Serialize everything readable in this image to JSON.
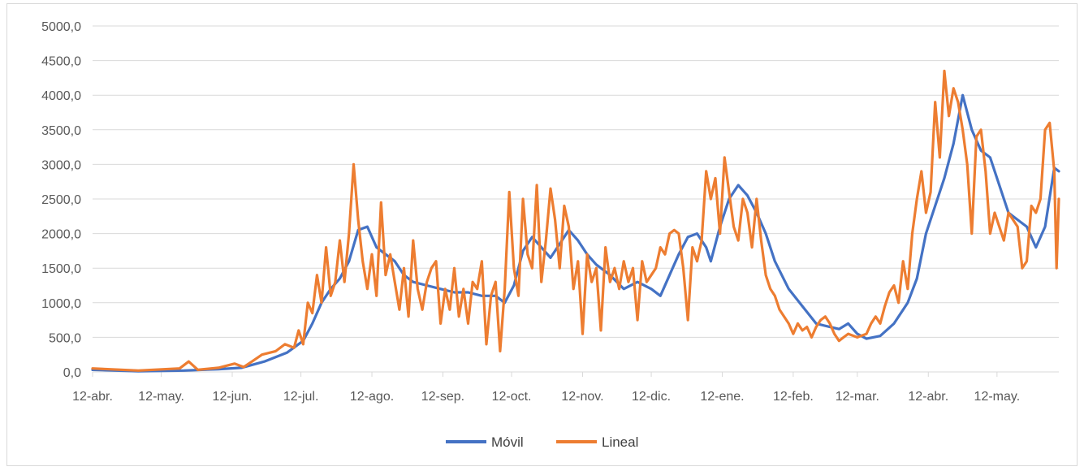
{
  "colors": {
    "movil": "#4472c4",
    "lineal": "#ed7d31",
    "grid": "#d9d9d9",
    "text": "#595959"
  },
  "chart_data": {
    "type": "line",
    "title": "",
    "xlabel": "",
    "ylabel": "",
    "ylim": [
      0,
      5000
    ],
    "yticks": [
      "0,0",
      "500,0",
      "1000,0",
      "1500,0",
      "2000,0",
      "2500,0",
      "3000,0",
      "3500,0",
      "4000,0",
      "4500,0",
      "5000,0"
    ],
    "xticks": [
      {
        "label": "12-abr.",
        "day": 0
      },
      {
        "label": "12-may.",
        "day": 30
      },
      {
        "label": "12-jun.",
        "day": 61
      },
      {
        "label": "12-jul.",
        "day": 91
      },
      {
        "label": "12-ago.",
        "day": 122
      },
      {
        "label": "12-sep.",
        "day": 153
      },
      {
        "label": "12-oct.",
        "day": 183
      },
      {
        "label": "12-nov.",
        "day": 214
      },
      {
        "label": "12-dic.",
        "day": 244
      },
      {
        "label": "12-ene.",
        "day": 275
      },
      {
        "label": "12-feb.",
        "day": 306
      },
      {
        "label": "12-mar.",
        "day": 334
      },
      {
        "label": "12-abr.",
        "day": 365
      },
      {
        "label": "12-may.",
        "day": 395
      }
    ],
    "grid": true,
    "legend": "bottom",
    "series": [
      {
        "name": "Móvil",
        "color": "#4472c4",
        "points": [
          [
            0,
            30
          ],
          [
            20,
            10
          ],
          [
            40,
            20
          ],
          [
            55,
            40
          ],
          [
            65,
            60
          ],
          [
            75,
            150
          ],
          [
            85,
            280
          ],
          [
            92,
            450
          ],
          [
            96,
            700
          ],
          [
            100,
            1000
          ],
          [
            104,
            1200
          ],
          [
            108,
            1350
          ],
          [
            112,
            1600
          ],
          [
            116,
            2050
          ],
          [
            120,
            2100
          ],
          [
            124,
            1800
          ],
          [
            128,
            1700
          ],
          [
            132,
            1600
          ],
          [
            136,
            1400
          ],
          [
            140,
            1300
          ],
          [
            146,
            1250
          ],
          [
            152,
            1200
          ],
          [
            158,
            1150
          ],
          [
            164,
            1150
          ],
          [
            170,
            1100
          ],
          [
            176,
            1100
          ],
          [
            180,
            1000
          ],
          [
            184,
            1250
          ],
          [
            188,
            1750
          ],
          [
            192,
            1950
          ],
          [
            196,
            1800
          ],
          [
            200,
            1650
          ],
          [
            204,
            1850
          ],
          [
            208,
            2050
          ],
          [
            212,
            1900
          ],
          [
            216,
            1700
          ],
          [
            220,
            1550
          ],
          [
            226,
            1400
          ],
          [
            232,
            1200
          ],
          [
            238,
            1300
          ],
          [
            244,
            1200
          ],
          [
            248,
            1100
          ],
          [
            252,
            1400
          ],
          [
            256,
            1700
          ],
          [
            260,
            1950
          ],
          [
            264,
            2000
          ],
          [
            268,
            1800
          ],
          [
            270,
            1600
          ],
          [
            274,
            2100
          ],
          [
            278,
            2500
          ],
          [
            282,
            2700
          ],
          [
            286,
            2550
          ],
          [
            290,
            2300
          ],
          [
            294,
            2000
          ],
          [
            298,
            1600
          ],
          [
            304,
            1200
          ],
          [
            310,
            950
          ],
          [
            316,
            700
          ],
          [
            322,
            650
          ],
          [
            326,
            620
          ],
          [
            330,
            700
          ],
          [
            334,
            550
          ],
          [
            338,
            480
          ],
          [
            344,
            520
          ],
          [
            350,
            700
          ],
          [
            356,
            1000
          ],
          [
            360,
            1350
          ],
          [
            364,
            2000
          ],
          [
            368,
            2400
          ],
          [
            372,
            2800
          ],
          [
            376,
            3300
          ],
          [
            380,
            4000
          ],
          [
            384,
            3500
          ],
          [
            388,
            3200
          ],
          [
            392,
            3100
          ],
          [
            396,
            2700
          ],
          [
            400,
            2300
          ],
          [
            404,
            2200
          ],
          [
            408,
            2100
          ],
          [
            412,
            1800
          ],
          [
            416,
            2100
          ],
          [
            420,
            2950
          ],
          [
            422,
            2900
          ]
        ]
      },
      {
        "name": "Lineal",
        "color": "#ed7d31",
        "points": [
          [
            0,
            50
          ],
          [
            20,
            20
          ],
          [
            38,
            50
          ],
          [
            42,
            150
          ],
          [
            46,
            30
          ],
          [
            55,
            60
          ],
          [
            62,
            120
          ],
          [
            66,
            70
          ],
          [
            70,
            160
          ],
          [
            74,
            250
          ],
          [
            80,
            300
          ],
          [
            84,
            400
          ],
          [
            88,
            350
          ],
          [
            90,
            600
          ],
          [
            92,
            400
          ],
          [
            94,
            1000
          ],
          [
            96,
            850
          ],
          [
            98,
            1400
          ],
          [
            100,
            1000
          ],
          [
            102,
            1800
          ],
          [
            104,
            1100
          ],
          [
            106,
            1300
          ],
          [
            108,
            1900
          ],
          [
            110,
            1300
          ],
          [
            112,
            2000
          ],
          [
            114,
            3000
          ],
          [
            116,
            2200
          ],
          [
            118,
            1600
          ],
          [
            120,
            1200
          ],
          [
            122,
            1700
          ],
          [
            124,
            1100
          ],
          [
            126,
            2450
          ],
          [
            128,
            1400
          ],
          [
            130,
            1700
          ],
          [
            132,
            1300
          ],
          [
            134,
            900
          ],
          [
            136,
            1500
          ],
          [
            138,
            800
          ],
          [
            140,
            1900
          ],
          [
            142,
            1200
          ],
          [
            144,
            900
          ],
          [
            146,
            1300
          ],
          [
            148,
            1500
          ],
          [
            150,
            1600
          ],
          [
            152,
            700
          ],
          [
            154,
            1200
          ],
          [
            156,
            900
          ],
          [
            158,
            1500
          ],
          [
            160,
            800
          ],
          [
            162,
            1200
          ],
          [
            164,
            700
          ],
          [
            166,
            1300
          ],
          [
            168,
            1200
          ],
          [
            170,
            1600
          ],
          [
            172,
            400
          ],
          [
            174,
            1100
          ],
          [
            176,
            1300
          ],
          [
            178,
            300
          ],
          [
            180,
            1200
          ],
          [
            182,
            2600
          ],
          [
            184,
            1500
          ],
          [
            186,
            1100
          ],
          [
            188,
            2500
          ],
          [
            190,
            1700
          ],
          [
            192,
            1500
          ],
          [
            194,
            2700
          ],
          [
            196,
            1300
          ],
          [
            198,
            1900
          ],
          [
            200,
            2650
          ],
          [
            202,
            2200
          ],
          [
            204,
            1500
          ],
          [
            206,
            2400
          ],
          [
            208,
            2100
          ],
          [
            210,
            1200
          ],
          [
            212,
            1600
          ],
          [
            214,
            550
          ],
          [
            216,
            1700
          ],
          [
            218,
            1300
          ],
          [
            220,
            1500
          ],
          [
            222,
            600
          ],
          [
            224,
            1800
          ],
          [
            226,
            1300
          ],
          [
            228,
            1500
          ],
          [
            230,
            1200
          ],
          [
            232,
            1600
          ],
          [
            234,
            1300
          ],
          [
            236,
            1500
          ],
          [
            238,
            750
          ],
          [
            240,
            1600
          ],
          [
            242,
            1300
          ],
          [
            244,
            1400
          ],
          [
            246,
            1500
          ],
          [
            248,
            1800
          ],
          [
            250,
            1700
          ],
          [
            252,
            2000
          ],
          [
            254,
            2050
          ],
          [
            256,
            2000
          ],
          [
            258,
            1500
          ],
          [
            260,
            750
          ],
          [
            262,
            1800
          ],
          [
            264,
            1600
          ],
          [
            266,
            1900
          ],
          [
            268,
            2900
          ],
          [
            270,
            2500
          ],
          [
            272,
            2800
          ],
          [
            274,
            2000
          ],
          [
            276,
            3100
          ],
          [
            278,
            2600
          ],
          [
            280,
            2100
          ],
          [
            282,
            1900
          ],
          [
            284,
            2500
          ],
          [
            286,
            2300
          ],
          [
            288,
            1800
          ],
          [
            290,
            2500
          ],
          [
            292,
            1900
          ],
          [
            294,
            1400
          ],
          [
            296,
            1200
          ],
          [
            298,
            1100
          ],
          [
            300,
            900
          ],
          [
            302,
            800
          ],
          [
            304,
            700
          ],
          [
            306,
            550
          ],
          [
            308,
            700
          ],
          [
            310,
            600
          ],
          [
            312,
            650
          ],
          [
            314,
            500
          ],
          [
            316,
            650
          ],
          [
            318,
            750
          ],
          [
            320,
            800
          ],
          [
            322,
            700
          ],
          [
            324,
            550
          ],
          [
            326,
            450
          ],
          [
            328,
            500
          ],
          [
            330,
            550
          ],
          [
            334,
            500
          ],
          [
            338,
            550
          ],
          [
            340,
            700
          ],
          [
            342,
            800
          ],
          [
            344,
            700
          ],
          [
            346,
            950
          ],
          [
            348,
            1150
          ],
          [
            350,
            1250
          ],
          [
            352,
            1000
          ],
          [
            354,
            1600
          ],
          [
            356,
            1200
          ],
          [
            358,
            2000
          ],
          [
            360,
            2500
          ],
          [
            362,
            2900
          ],
          [
            364,
            2300
          ],
          [
            366,
            2600
          ],
          [
            368,
            3900
          ],
          [
            370,
            3100
          ],
          [
            372,
            4350
          ],
          [
            374,
            3700
          ],
          [
            376,
            4100
          ],
          [
            378,
            3900
          ],
          [
            380,
            3500
          ],
          [
            382,
            3000
          ],
          [
            384,
            2000
          ],
          [
            386,
            3400
          ],
          [
            388,
            3500
          ],
          [
            390,
            2900
          ],
          [
            392,
            2000
          ],
          [
            394,
            2300
          ],
          [
            396,
            2100
          ],
          [
            398,
            1900
          ],
          [
            400,
            2300
          ],
          [
            402,
            2200
          ],
          [
            404,
            2100
          ],
          [
            406,
            1500
          ],
          [
            408,
            1600
          ],
          [
            410,
            2400
          ],
          [
            412,
            2300
          ],
          [
            414,
            2500
          ],
          [
            416,
            3500
          ],
          [
            418,
            3600
          ],
          [
            420,
            2900
          ],
          [
            421,
            1500
          ],
          [
            422,
            2500
          ]
        ]
      }
    ]
  }
}
